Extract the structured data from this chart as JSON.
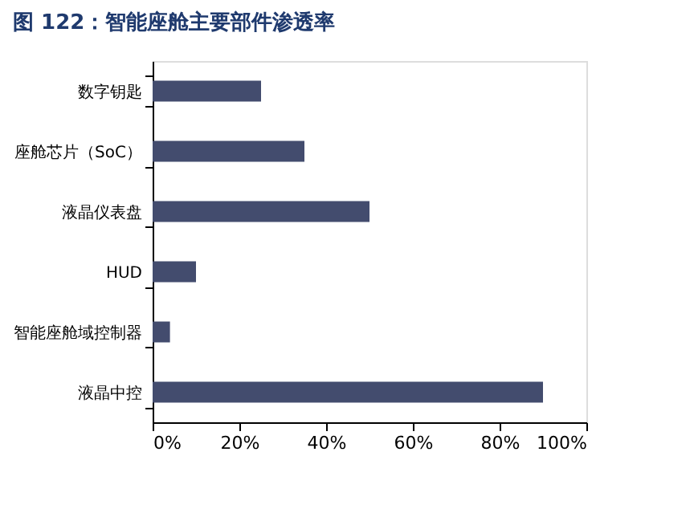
{
  "chart_data": {
    "type": "bar",
    "orientation": "horizontal",
    "title": "图 122：智能座舱主要部件渗透率",
    "categories": [
      "数字钥匙",
      "座舱芯片（SoC）",
      "液晶仪表盘",
      "HUD",
      "智能座舱域控制器",
      "液晶中控"
    ],
    "values": [
      25,
      35,
      50,
      10,
      4,
      90
    ],
    "color": "#434c6e",
    "xlim": [
      0,
      100
    ],
    "xticks": [
      {
        "value": 0,
        "label": "0%"
      },
      {
        "value": 20,
        "label": "20%"
      },
      {
        "value": 40,
        "label": "40%"
      },
      {
        "value": 60,
        "label": "60%"
      },
      {
        "value": 80,
        "label": "80%"
      },
      {
        "value": 100,
        "label": "100%"
      }
    ],
    "grid": false
  }
}
